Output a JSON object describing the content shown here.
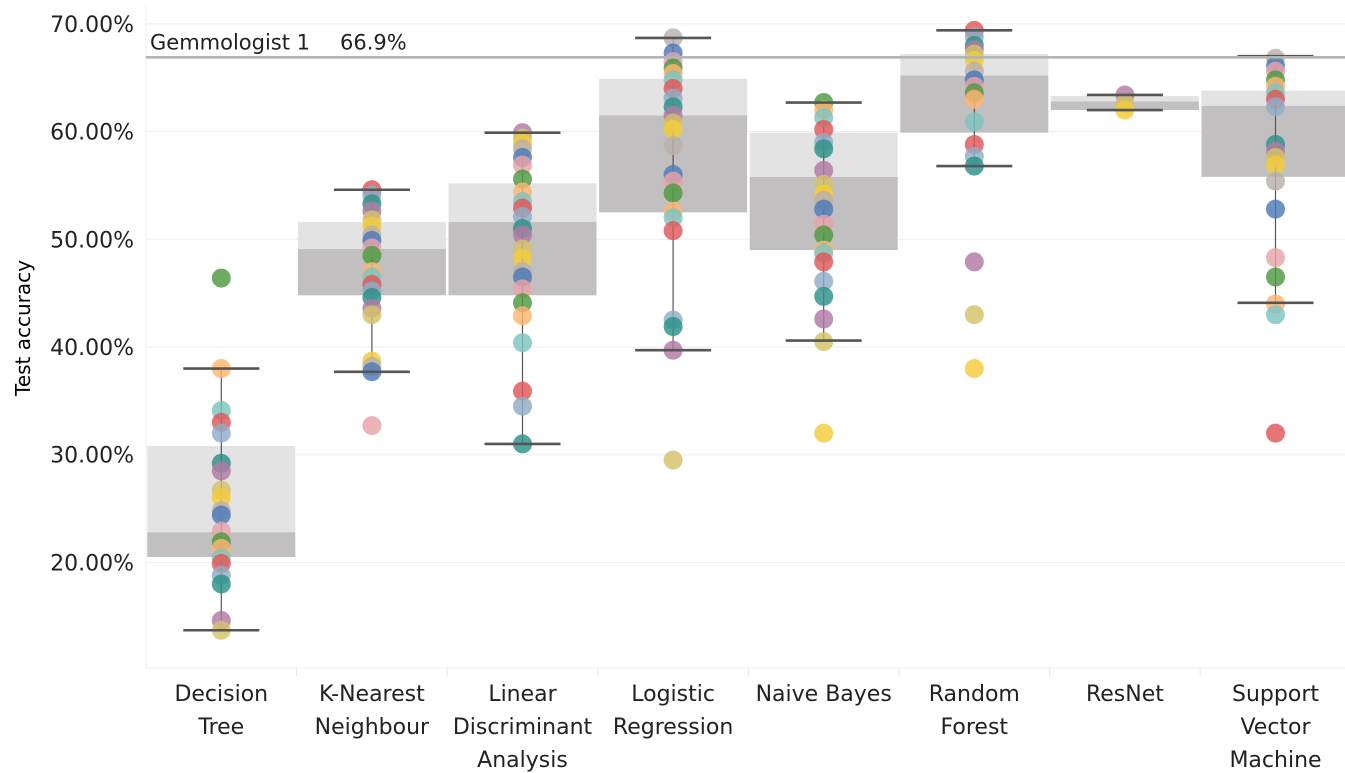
{
  "chart_data": {
    "type": "box",
    "title": "",
    "xlabel": "",
    "ylabel": "Test accuracy",
    "ylim": [
      10,
      70
    ],
    "yticks": [
      "20.00%",
      "30.00%",
      "40.00%",
      "50.00%",
      "60.00%",
      "70.00%"
    ],
    "grid": true,
    "reference_line": {
      "label": "Gemmologist 1",
      "value": 66.9,
      "value_label": "66.9%"
    },
    "colors": {
      "box_upper": "#e3e3e3",
      "box_lower": "#c1bfbf",
      "whisker": "#555555",
      "reference_line": "#b4b4b4",
      "grid": "#eeeeee"
    },
    "categories": [
      {
        "label": [
          "Decision",
          "Tree"
        ],
        "whisker_low": 13.7,
        "q1": 20.5,
        "median": 22.8,
        "q3": 30.8,
        "whisker_high": 38.0,
        "points": [
          46.4,
          38.0,
          34.1,
          33.0,
          32.0,
          29.2,
          28.5,
          26.7,
          26.0,
          24.8,
          24.4,
          22.9,
          21.9,
          21.3,
          20.4,
          19.9,
          18.8,
          18.0,
          14.6,
          13.7
        ]
      },
      {
        "label": [
          "K-Nearest",
          "Neighbour"
        ],
        "whisker_low": 37.7,
        "q1": 44.8,
        "median": 49.1,
        "q3": 51.6,
        "whisker_high": 54.6,
        "points": [
          54.6,
          54.1,
          53.3,
          52.6,
          51.8,
          51.2,
          50.4,
          49.9,
          49.2,
          48.5,
          47.0,
          46.5,
          45.8,
          45.2,
          44.6,
          43.6,
          43.0,
          38.7,
          38.2,
          37.7,
          32.7
        ]
      },
      {
        "label": [
          "Linear",
          "Discriminant",
          "Analysis"
        ],
        "whisker_low": 31.0,
        "q1": 44.8,
        "median": 51.6,
        "q3": 55.2,
        "whisker_high": 59.9,
        "points": [
          59.9,
          59.4,
          58.9,
          58.4,
          57.6,
          56.9,
          55.6,
          54.4,
          53.5,
          52.9,
          52.1,
          51.0,
          50.4,
          49.1,
          48.2,
          47.0,
          46.5,
          45.4,
          44.1,
          42.9,
          40.4,
          35.9,
          34.5,
          31.0
        ]
      },
      {
        "label": [
          "Logistic",
          "Regression"
        ],
        "whisker_low": 39.7,
        "q1": 52.5,
        "median": 61.5,
        "q3": 64.9,
        "whisker_high": 68.7,
        "points": [
          68.7,
          67.3,
          66.5,
          65.9,
          65.4,
          64.8,
          64.0,
          63.1,
          62.3,
          61.5,
          60.8,
          60.2,
          58.7,
          56.0,
          55.4,
          54.3,
          52.6,
          52.0,
          50.8,
          42.5,
          41.9,
          39.7,
          29.5
        ]
      },
      {
        "label": [
          "Naive Bayes"
        ],
        "whisker_low": 40.6,
        "q1": 49.0,
        "median": 55.8,
        "q3": 59.9,
        "whisker_high": 62.7,
        "points": [
          62.7,
          62.0,
          61.3,
          60.2,
          59.0,
          58.4,
          56.4,
          55.1,
          54.2,
          53.6,
          52.8,
          51.4,
          50.4,
          49.0,
          48.7,
          47.9,
          46.1,
          44.7,
          42.6,
          40.5,
          32.0
        ]
      },
      {
        "label": [
          "Random",
          "Forest"
        ],
        "whisker_low": 56.8,
        "q1": 59.9,
        "median": 65.2,
        "q3": 67.2,
        "whisker_high": 69.4,
        "points": [
          69.4,
          68.8,
          68.0,
          67.6,
          67.2,
          66.6,
          65.6,
          64.8,
          64.2,
          63.6,
          63.0,
          60.9,
          58.8,
          57.7,
          56.8,
          47.9,
          43.0,
          38.0
        ]
      },
      {
        "label": [
          "ResNet"
        ],
        "whisker_low": 62.0,
        "q1": 62.0,
        "median": 62.8,
        "q3": 63.3,
        "whisker_high": 63.4,
        "points": [
          63.4,
          62.6,
          62.0
        ]
      },
      {
        "label": [
          "Support",
          "Vector",
          "Machine"
        ],
        "whisker_low": 44.1,
        "q1": 55.8,
        "median": 62.4,
        "q3": 63.8,
        "whisker_high": 67.0,
        "points": [
          66.8,
          66.1,
          65.6,
          64.8,
          64.2,
          63.6,
          63.0,
          62.3,
          58.8,
          58.2,
          57.6,
          56.9,
          55.4,
          52.8,
          48.3,
          46.5,
          44.0,
          43.0,
          32.0
        ]
      }
    ],
    "point_palette": [
      "#4e9a42",
      "#2c9189",
      "#4d7ab8",
      "#e15759",
      "#f3cc3b",
      "#ffb470",
      "#b17aa5",
      "#e8a2a8",
      "#8fadc7",
      "#bab0ac",
      "#7ec4c0",
      "#d4c26a"
    ]
  }
}
